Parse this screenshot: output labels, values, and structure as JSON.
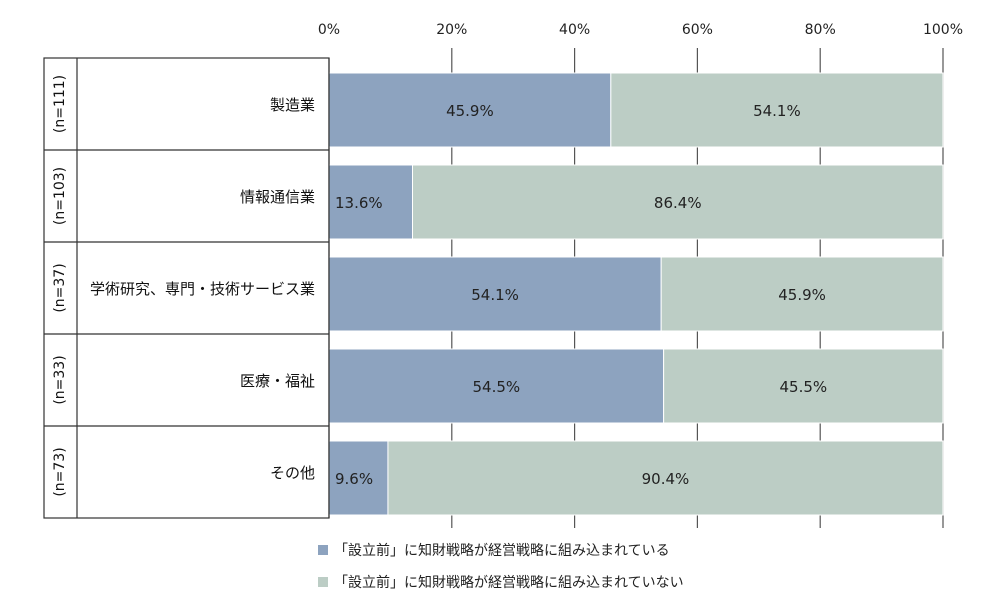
{
  "chart_data": {
    "type": "bar",
    "stacked": true,
    "orientation": "horizontal",
    "percent": true,
    "xlim": [
      0,
      100
    ],
    "xticks": [
      "0%",
      "20%",
      "40%",
      "60%",
      "80%",
      "100%"
    ],
    "categories": [
      "製造業",
      "情報通信業",
      "学術研究、専門・技術サービス業",
      "医療・福祉",
      "その他"
    ],
    "sample_sizes": [
      "(n=111)",
      "(n=103)",
      "(n=37)",
      "(n=33)",
      "(n=73)"
    ],
    "series": [
      {
        "name": "「設立前」に知財戦略が経営戦略に組み込まれている",
        "color": "#8da3bf",
        "values": [
          45.9,
          13.6,
          54.1,
          54.5,
          9.6
        ],
        "labels": [
          "45.9%",
          "13.6%",
          "54.1%",
          "54.5%",
          "9.6%"
        ]
      },
      {
        "name": "「設立前」に知財戦略が経営戦略に組み込まれていない",
        "color": "#bccdc5",
        "values": [
          54.1,
          86.4,
          45.9,
          45.5,
          90.4
        ],
        "labels": [
          "54.1%",
          "86.4%",
          "45.9%",
          "45.5%",
          "90.4%"
        ]
      }
    ],
    "grid": true,
    "legend_position": "bottom-left"
  }
}
